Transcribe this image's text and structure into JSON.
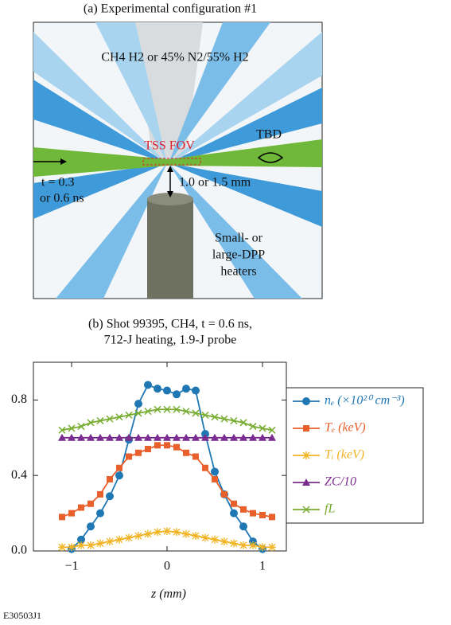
{
  "diagram": {
    "title": "(a) Experimental configuration #1",
    "gas": "CH4 H2 or 45% N2/55% H2",
    "fov": "TSS FOV",
    "detector": "TBD",
    "probe_time": [
      "t = 0.3",
      "or 0.6 ns"
    ],
    "distance": "1.0 or 1.5 mm",
    "heaters": [
      "Small- or",
      "large-DPP",
      "heaters"
    ]
  },
  "chart_data": {
    "type": "line",
    "title": [
      "(b) Shot 99395, CH4, t = 0.6 ns,",
      "712-J heating, 1.9-J probe"
    ],
    "x_label": "z (mm)",
    "x": [
      -1.1,
      -1.0,
      -0.9,
      -0.8,
      -0.7,
      -0.6,
      -0.5,
      -0.4,
      -0.3,
      -0.2,
      -0.1,
      0,
      0.1,
      0.2,
      0.3,
      0.4,
      0.5,
      0.6,
      0.7,
      0.8,
      0.9,
      1.0,
      1.1
    ],
    "xlim": [
      -1.4,
      1.25
    ],
    "xticks": [
      {
        "value": -1,
        "label": "−1"
      },
      0,
      1
    ],
    "ylim": [
      0,
      1.0
    ],
    "yticks": [
      {
        "value": 0,
        "label": "0.0"
      },
      0.4,
      0.8
    ],
    "legend": "right",
    "series": [
      {
        "name": "nₑ (×10²⁰ cm⁻³)",
        "color": "#1f77b4",
        "marker": "circle",
        "values": [
          null,
          0.01,
          0.06,
          0.13,
          0.2,
          0.29,
          0.4,
          0.59,
          0.78,
          0.88,
          0.86,
          0.85,
          0.83,
          0.86,
          0.85,
          0.62,
          0.42,
          0.3,
          0.2,
          0.13,
          0.05,
          0.01,
          null
        ]
      },
      {
        "name": "Tₑ (keV)",
        "color": "#e8602c",
        "marker": "square",
        "values": [
          0.18,
          0.2,
          0.23,
          0.25,
          0.3,
          0.38,
          0.44,
          0.5,
          0.52,
          0.54,
          0.56,
          0.56,
          0.55,
          0.52,
          0.5,
          0.44,
          0.38,
          0.3,
          0.25,
          0.22,
          0.2,
          0.19,
          0.18
        ]
      },
      {
        "name": "Tᵢ (keV)",
        "color": "#f0b323",
        "marker": "star",
        "values": [
          0.02,
          0.02,
          0.03,
          0.03,
          0.04,
          0.05,
          0.06,
          0.07,
          0.08,
          0.09,
          0.1,
          0.105,
          0.1,
          0.09,
          0.08,
          0.07,
          0.06,
          0.05,
          0.04,
          0.03,
          0.03,
          0.02,
          0.02
        ]
      },
      {
        "name": "ZC/10",
        "color": "#7b2d8e",
        "marker": "triangle",
        "values": [
          0.6,
          0.6,
          0.6,
          0.6,
          0.6,
          0.6,
          0.6,
          0.6,
          0.6,
          0.6,
          0.6,
          0.6,
          0.6,
          0.6,
          0.6,
          0.6,
          0.6,
          0.6,
          0.6,
          0.6,
          0.6,
          0.6,
          0.6
        ]
      },
      {
        "name": "fL",
        "color": "#77ac30",
        "marker": "x",
        "values": [
          0.64,
          0.65,
          0.66,
          0.68,
          0.69,
          0.7,
          0.71,
          0.72,
          0.73,
          0.74,
          0.75,
          0.75,
          0.75,
          0.74,
          0.73,
          0.72,
          0.71,
          0.7,
          0.69,
          0.68,
          0.66,
          0.65,
          0.64
        ]
      }
    ],
    "footer": "E30503J1"
  }
}
